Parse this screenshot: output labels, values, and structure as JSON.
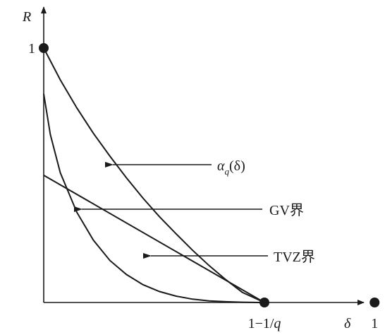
{
  "chart_data": {
    "type": "line",
    "title": "",
    "xlabel": "δ",
    "ylabel": "R",
    "xlim": [
      0,
      1.17
    ],
    "ylim": [
      0,
      1.14
    ],
    "grid": false,
    "x_ticks": [
      {
        "value": 0.667,
        "label": "1−1/q"
      },
      {
        "value": 1.0,
        "label": "1"
      }
    ],
    "y_ticks": [
      {
        "value": 1.0,
        "label": "1"
      }
    ],
    "marker_points": [
      {
        "x": 0,
        "y": 1
      },
      {
        "x": 0.667,
        "y": 0
      },
      {
        "x": 1.0,
        "y": 0
      }
    ],
    "series": [
      {
        "name": "α_q(δ)",
        "x": [
          0,
          0.05,
          0.1,
          0.15,
          0.2,
          0.25,
          0.3,
          0.35,
          0.4,
          0.45,
          0.5,
          0.55,
          0.6,
          0.667
        ],
        "y": [
          1.0,
          0.875,
          0.765,
          0.665,
          0.575,
          0.49,
          0.41,
          0.337,
          0.27,
          0.205,
          0.145,
          0.09,
          0.04,
          0
        ]
      },
      {
        "name": "GV界",
        "x": [
          0,
          0.667
        ],
        "y": [
          0.5,
          0
        ]
      },
      {
        "name": "TVZ界",
        "x": [
          0,
          0.02,
          0.05,
          0.1,
          0.15,
          0.2,
          0.25,
          0.3,
          0.35,
          0.4,
          0.45,
          0.5,
          0.55,
          0.6,
          0.65,
          0.667
        ],
        "y": [
          0.82,
          0.66,
          0.51,
          0.355,
          0.245,
          0.165,
          0.11,
          0.07,
          0.043,
          0.025,
          0.013,
          0.006,
          0.003,
          0.001,
          0.0,
          0
        ]
      }
    ],
    "annotations": [
      {
        "target": "α_q(δ)",
        "label": "α",
        "sub": "q",
        "suffix": "(δ)"
      },
      {
        "target": "GV界",
        "label": "GV界"
      },
      {
        "target": "TVZ界",
        "label": "TVZ界"
      }
    ]
  }
}
